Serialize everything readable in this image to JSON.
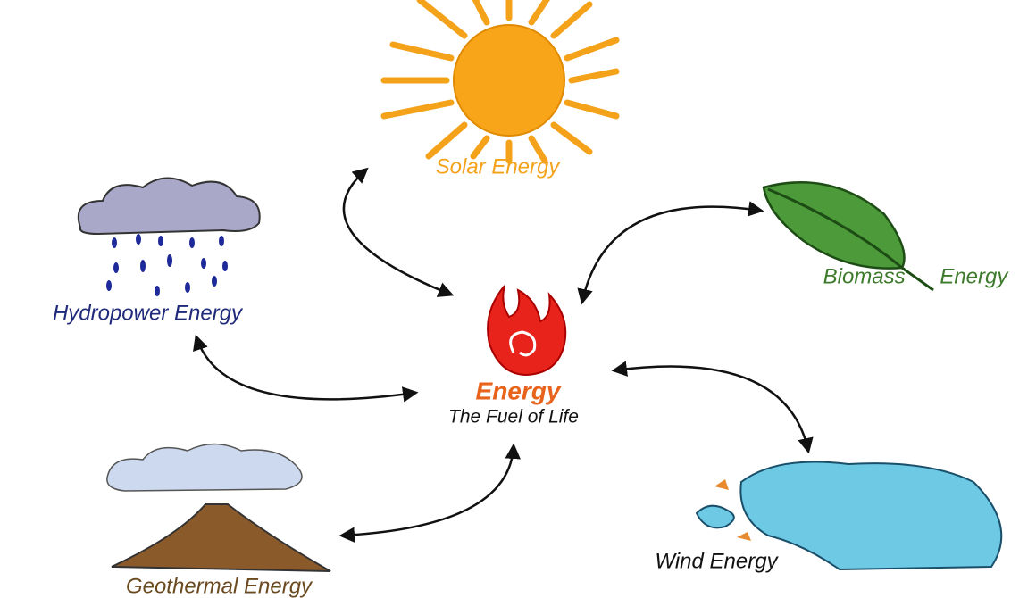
{
  "center": {
    "title": "Energy",
    "subtitle": "The Fuel of Life"
  },
  "nodes": [
    {
      "label": "Solar Energy"
    },
    {
      "label": "Biomass Energy"
    },
    {
      "label": "Wind Energy"
    },
    {
      "label": "Geothermal Energy"
    },
    {
      "label": "Hydropower Energy"
    }
  ]
}
